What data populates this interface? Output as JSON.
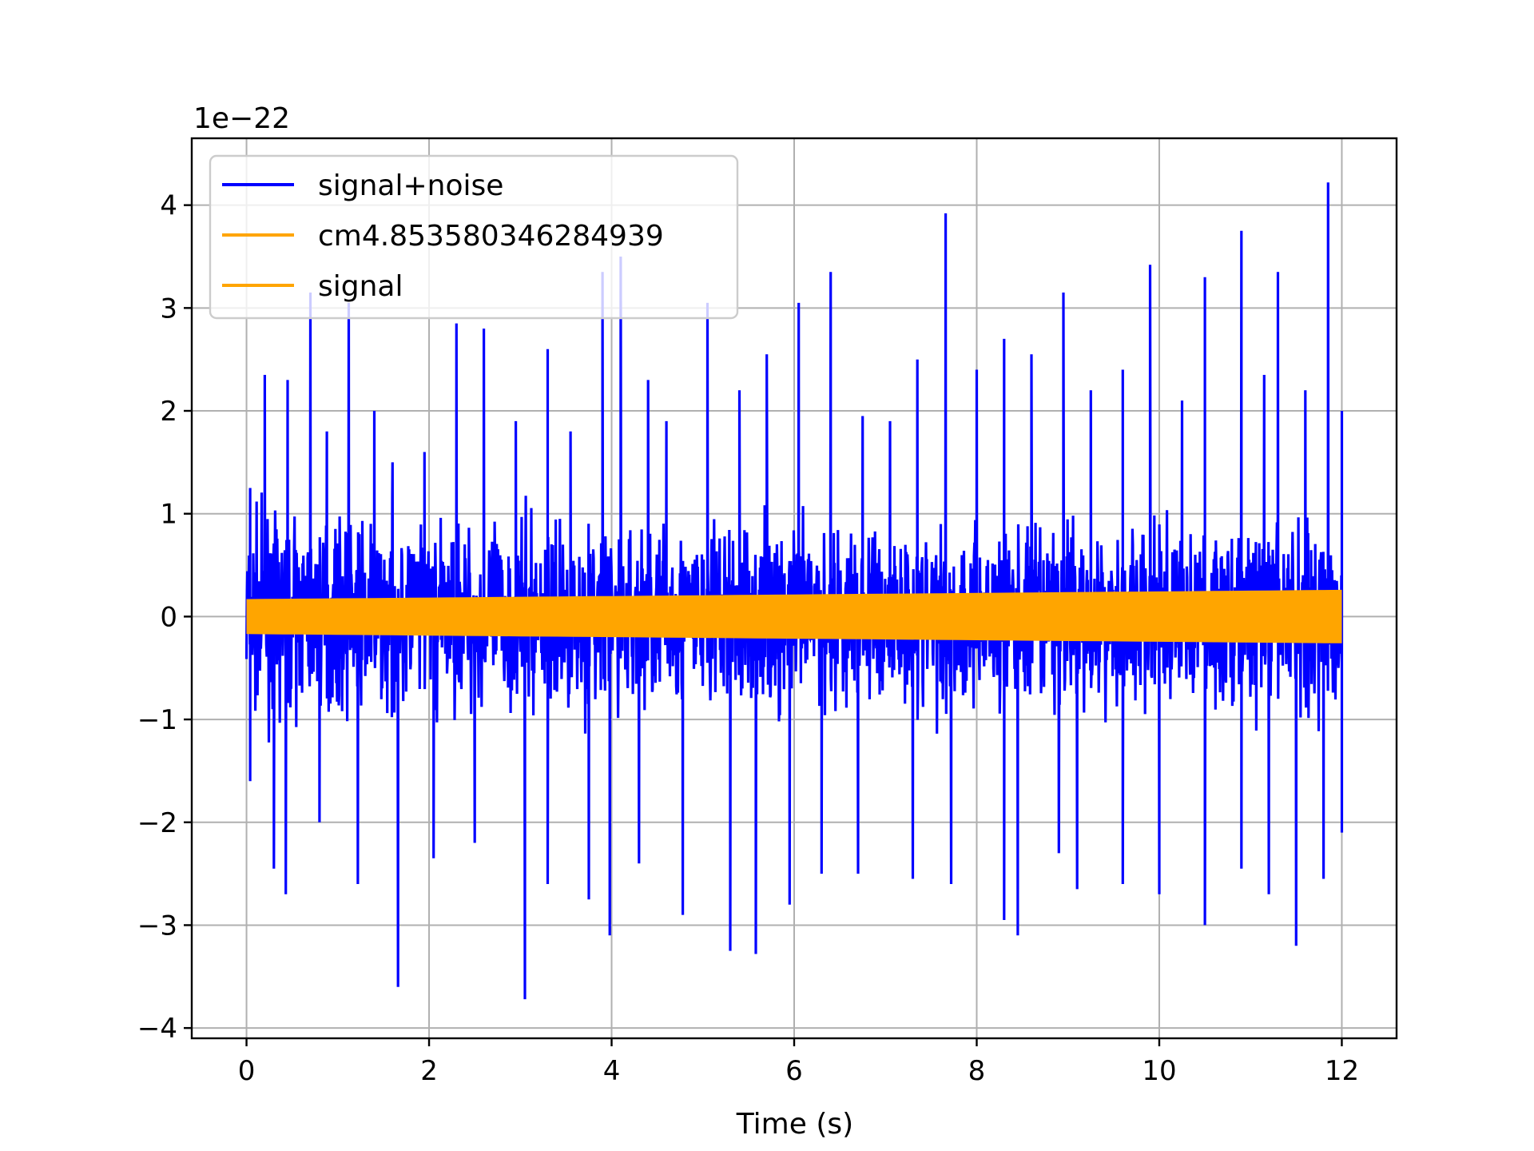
{
  "chart_data": {
    "type": "line",
    "title": "",
    "xlabel": "Time (s)",
    "ylabel": "",
    "y_offset_label": "1e−22",
    "y_scale": 1e-22,
    "xlim": [
      -0.6,
      12.6
    ],
    "ylim": [
      -4.1,
      4.65
    ],
    "x_ticks": [
      0,
      2,
      4,
      6,
      8,
      10,
      12
    ],
    "x_tick_labels": [
      "0",
      "2",
      "4",
      "6",
      "8",
      "10",
      "12"
    ],
    "y_ticks": [
      -4,
      -3,
      -2,
      -1,
      0,
      1,
      2,
      3,
      4
    ],
    "y_tick_labels": [
      "−4",
      "−3",
      "−2",
      "−1",
      "0",
      "1",
      "2",
      "3",
      "4"
    ],
    "grid": true,
    "legend_position": "top-left",
    "x_range": [
      0,
      12
    ],
    "series": [
      {
        "name": "signal+noise",
        "color": "#0000ff",
        "description_values": {
          "typical_band": [
            -2.0,
            2.0
          ],
          "max_peak": 4.22,
          "min_peak": -3.72
        },
        "peaks": [
          [
            0.04,
            1.25
          ],
          [
            0.2,
            2.35
          ],
          [
            0.45,
            2.3
          ],
          [
            0.7,
            3.15
          ],
          [
            0.88,
            1.8
          ],
          [
            1.12,
            3.05
          ],
          [
            1.4,
            2.0
          ],
          [
            1.6,
            1.5
          ],
          [
            1.95,
            1.6
          ],
          [
            2.3,
            2.85
          ],
          [
            2.6,
            2.8
          ],
          [
            2.95,
            1.9
          ],
          [
            3.3,
            2.6
          ],
          [
            3.55,
            1.8
          ],
          [
            3.9,
            3.35
          ],
          [
            4.1,
            3.5
          ],
          [
            4.4,
            2.3
          ],
          [
            4.6,
            1.9
          ],
          [
            5.05,
            3.05
          ],
          [
            5.4,
            2.2
          ],
          [
            5.7,
            2.55
          ],
          [
            6.05,
            3.05
          ],
          [
            6.4,
            3.35
          ],
          [
            6.75,
            1.95
          ],
          [
            7.05,
            1.9
          ],
          [
            7.35,
            2.5
          ],
          [
            7.66,
            3.92
          ],
          [
            8.0,
            2.4
          ],
          [
            8.3,
            2.7
          ],
          [
            8.6,
            2.55
          ],
          [
            8.95,
            3.15
          ],
          [
            9.25,
            2.2
          ],
          [
            9.6,
            2.4
          ],
          [
            9.9,
            3.42
          ],
          [
            10.25,
            2.1
          ],
          [
            10.5,
            3.3
          ],
          [
            10.9,
            3.75
          ],
          [
            11.15,
            2.35
          ],
          [
            11.3,
            3.35
          ],
          [
            11.6,
            2.2
          ],
          [
            11.85,
            4.22
          ],
          [
            12.0,
            2.0
          ]
        ],
        "troughs": [
          [
            0.04,
            -1.6
          ],
          [
            0.3,
            -2.45
          ],
          [
            0.43,
            -2.7
          ],
          [
            0.8,
            -2.0
          ],
          [
            1.22,
            -2.6
          ],
          [
            1.66,
            -3.6
          ],
          [
            2.05,
            -2.35
          ],
          [
            2.5,
            -2.2
          ],
          [
            3.05,
            -3.72
          ],
          [
            3.3,
            -2.6
          ],
          [
            3.75,
            -2.75
          ],
          [
            3.98,
            -3.1
          ],
          [
            4.3,
            -2.4
          ],
          [
            4.78,
            -2.9
          ],
          [
            5.3,
            -3.25
          ],
          [
            5.58,
            -3.28
          ],
          [
            5.95,
            -2.8
          ],
          [
            6.3,
            -2.5
          ],
          [
            6.7,
            -2.5
          ],
          [
            7.3,
            -2.55
          ],
          [
            7.72,
            -2.6
          ],
          [
            8.3,
            -2.95
          ],
          [
            8.45,
            -3.1
          ],
          [
            8.9,
            -2.3
          ],
          [
            9.1,
            -2.65
          ],
          [
            9.6,
            -2.6
          ],
          [
            10.0,
            -2.7
          ],
          [
            10.5,
            -3.0
          ],
          [
            10.9,
            -2.45
          ],
          [
            11.2,
            -2.7
          ],
          [
            11.5,
            -3.2
          ],
          [
            11.8,
            -2.55
          ],
          [
            12.0,
            -2.1
          ]
        ]
      },
      {
        "name": "cm4.853580346284939",
        "color": "#ffa500",
        "amplitude_start": 0.17,
        "amplitude_end": 0.26
      },
      {
        "name": "signal",
        "color": "#ffa500",
        "amplitude_start": 0.17,
        "amplitude_end": 0.26
      }
    ]
  }
}
